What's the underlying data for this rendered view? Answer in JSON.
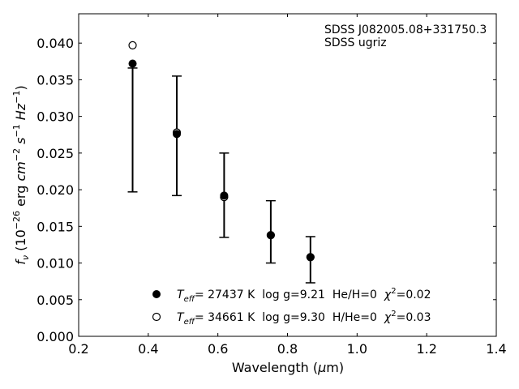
{
  "chart_data": {
    "type": "scatter",
    "xlabel": "Wavelength (μm)",
    "ylabel": "f_ν (10^-26 erg cm^-2 s^-1 Hz^-1)",
    "xlim": [
      0.2,
      1.4
    ],
    "ylim": [
      0.0,
      0.044
    ],
    "xticks": [
      0.2,
      0.4,
      0.6,
      0.8,
      1.0,
      1.2,
      1.4
    ],
    "xtick_labels": [
      "0.2",
      "0.4",
      "0.6",
      "0.8",
      "1.0",
      "1.2",
      "1.4"
    ],
    "yticks": [
      0.0,
      0.005,
      0.01,
      0.015,
      0.02,
      0.025,
      0.03,
      0.035,
      0.04
    ],
    "ytick_labels": [
      "0.000",
      "0.005",
      "0.010",
      "0.015",
      "0.020",
      "0.025",
      "0.030",
      "0.035",
      "0.040"
    ],
    "grid": false,
    "annotations": [
      "SDSS J082005.08+331750.3",
      "SDSS ugriz"
    ],
    "observed": {
      "x": [
        0.355,
        0.482,
        0.618,
        0.752,
        0.866
      ],
      "ylow": [
        0.0197,
        0.0192,
        0.0135,
        0.01,
        0.0073
      ],
      "yhigh": [
        0.0366,
        0.0355,
        0.025,
        0.0185,
        0.0136
      ]
    },
    "series": [
      {
        "name": "Teff= 27437 K  log g=9.21  He/H=0  χ2=0.02",
        "marker": "filled-circle",
        "x": [
          0.355,
          0.482,
          0.618,
          0.752,
          0.866
        ],
        "y": [
          0.0372,
          0.0276,
          0.0192,
          0.0138,
          0.0108
        ]
      },
      {
        "name": "Teff= 34661 K  log g=9.30  H/He=0  χ2=0.03",
        "marker": "open-circle",
        "x": [
          0.355,
          0.482,
          0.618,
          0.752,
          0.866
        ],
        "y": [
          0.0397,
          0.0278,
          0.019,
          0.0138,
          0.0108
        ]
      }
    ],
    "legend": {
      "placement": "lower-center",
      "entries": [
        {
          "teff_label": "T",
          "teff_sub": "eff",
          "teff_value": "= 27437 K",
          "logg": "log g=9.21",
          "comp": "He/H=0",
          "chi_label": "χ",
          "chi_sup": "2",
          "chi_value": "=0.02"
        },
        {
          "teff_label": "T",
          "teff_sub": "eff",
          "teff_value": "= 34661 K",
          "logg": "log g=9.30",
          "comp": "H/He=0",
          "chi_label": "χ",
          "chi_sup": "2",
          "chi_value": "=0.03"
        }
      ]
    },
    "axis_text": {
      "x_main": "Wavelength (",
      "x_mu": "μ",
      "x_m": "m)",
      "y_f": "f",
      "y_nu": "ν",
      "y_open": " (10",
      "y_e26": "−26",
      "y_erg": " erg ",
      "y_cm": "cm",
      "y_em2": "−2",
      "y_s": " s",
      "y_em1": "−1",
      "y_Hz": " Hz",
      "y_em1b": "−1",
      "y_close": ")"
    }
  }
}
